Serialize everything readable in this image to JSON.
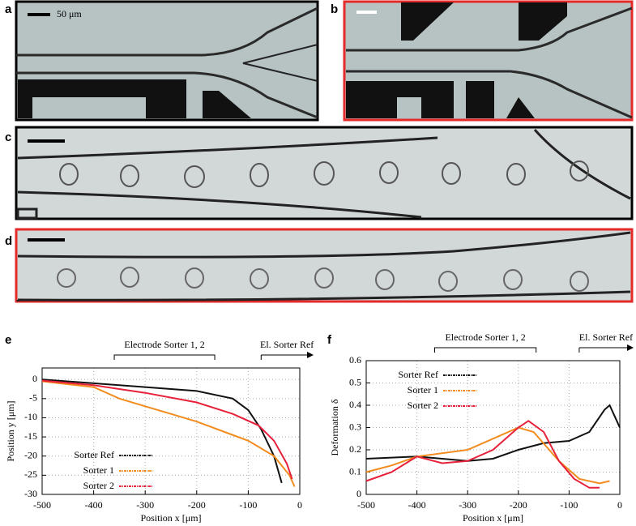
{
  "panels": {
    "labels": [
      "a",
      "b",
      "c",
      "d",
      "e",
      "f"
    ],
    "scale_label": "50 μm"
  },
  "chart_data": [
    {
      "type": "line",
      "xlabel": "Position x [μm]",
      "ylabel": "Position y [μm]",
      "xlim": [
        -500,
        0
      ],
      "ylim": [
        -30,
        3
      ],
      "xticks": [
        -500,
        -400,
        -300,
        -200,
        -100,
        0
      ],
      "yticks": [
        0,
        -5,
        -10,
        -15,
        -20,
        -25,
        -30
      ],
      "grid": true,
      "legend": "lower left",
      "annotations": [
        {
          "text": "Electrode Sorter 1, 2",
          "x_start": -360,
          "x_end": -165,
          "style": "bracket"
        },
        {
          "text": "El. Sorter Ref",
          "x_start": -75,
          "x_end": 0,
          "style": "arrow"
        }
      ],
      "series": [
        {
          "name": "Sorter Ref",
          "color": "#111111",
          "x": [
            -500,
            -400,
            -300,
            -200,
            -130,
            -100,
            -75,
            -50,
            -35
          ],
          "values": [
            0,
            -1,
            -2,
            -3,
            -5,
            -8,
            -13,
            -20,
            -27
          ]
        },
        {
          "name": "Sorter 1",
          "color": "#f28c1e",
          "x": [
            -500,
            -400,
            -350,
            -300,
            -250,
            -200,
            -150,
            -100,
            -50,
            -20,
            -10
          ],
          "values": [
            -0.5,
            -2,
            -5,
            -7,
            -9,
            -11,
            -13.5,
            -16,
            -20,
            -25,
            -28
          ]
        },
        {
          "name": "Sorter 2",
          "color": "#e8213a",
          "x": [
            -500,
            -400,
            -300,
            -200,
            -130,
            -80,
            -50,
            -25,
            -15
          ],
          "values": [
            -0.3,
            -1.5,
            -3.5,
            -6,
            -9,
            -12,
            -16,
            -22,
            -26
          ]
        }
      ]
    },
    {
      "type": "line",
      "xlabel": "Position x [μm]",
      "ylabel": "Deformation δ",
      "xlim": [
        -500,
        0
      ],
      "ylim": [
        0,
        0.6
      ],
      "xticks": [
        -500,
        -400,
        -300,
        -200,
        -100,
        0
      ],
      "yticks": [
        0,
        0.1,
        0.2,
        0.3,
        0.4,
        0.5,
        0.6
      ],
      "grid": true,
      "legend": "upper left",
      "annotations": [
        {
          "text": "Electrode Sorter 1, 2",
          "x_start": -365,
          "x_end": -165,
          "style": "bracket"
        },
        {
          "text": "El. Sorter Ref",
          "x_start": -80,
          "x_end": 0,
          "style": "arrow"
        }
      ],
      "series": [
        {
          "name": "Sorter Ref",
          "color": "#111111",
          "x": [
            -500,
            -400,
            -300,
            -250,
            -200,
            -150,
            -100,
            -60,
            -30,
            -20,
            0
          ],
          "values": [
            0.16,
            0.17,
            0.15,
            0.16,
            0.2,
            0.23,
            0.24,
            0.28,
            0.38,
            0.4,
            0.3
          ]
        },
        {
          "name": "Sorter 1",
          "color": "#f28c1e",
          "x": [
            -500,
            -450,
            -400,
            -300,
            -250,
            -200,
            -170,
            -120,
            -80,
            -40,
            -20
          ],
          "values": [
            0.1,
            0.13,
            0.17,
            0.2,
            0.25,
            0.3,
            0.28,
            0.15,
            0.07,
            0.05,
            0.06
          ]
        },
        {
          "name": "Sorter 2",
          "color": "#e8213a",
          "x": [
            -500,
            -450,
            -400,
            -350,
            -300,
            -250,
            -200,
            -180,
            -150,
            -120,
            -90,
            -60,
            -40
          ],
          "values": [
            0.06,
            0.1,
            0.17,
            0.14,
            0.15,
            0.2,
            0.3,
            0.33,
            0.28,
            0.15,
            0.07,
            0.03,
            0.03
          ]
        }
      ]
    }
  ]
}
